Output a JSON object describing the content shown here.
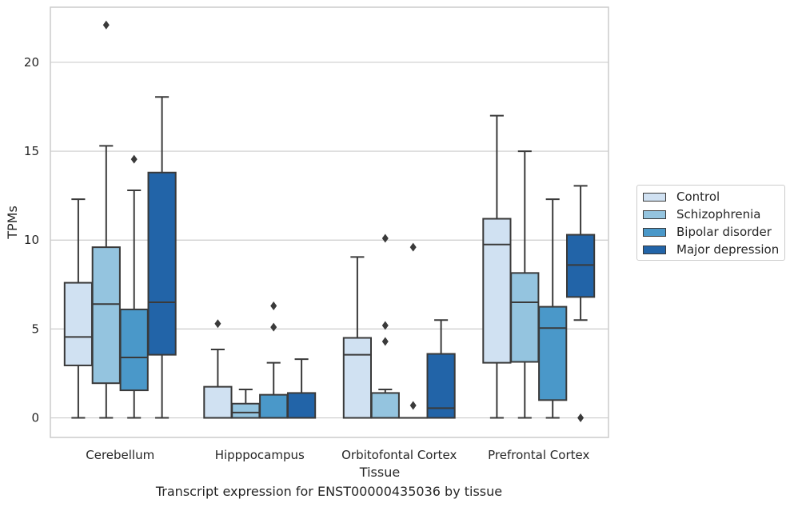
{
  "caption": "Transcript expression for ENST00000435036 by tissue",
  "chart_data": {
    "type": "box",
    "xlabel": "Tissue",
    "ylabel": "TPMs",
    "ylim": [
      -1.1,
      23.1
    ],
    "yticks": [
      0,
      5,
      10,
      15,
      20
    ],
    "grid": "horizontal",
    "legend_placement": "outside-right",
    "categories": [
      "Cerebellum",
      "Hipppocampus",
      "Orbitofontal Cortex",
      "Prefrontal Cortex"
    ],
    "series": [
      {
        "name": "Control",
        "color": "#d0e1f2",
        "boxes": [
          {
            "min": 0,
            "q1": 2.95,
            "median": 4.55,
            "q3": 7.6,
            "max": 12.3,
            "outliers": []
          },
          {
            "min": 0,
            "q1": 0,
            "median": 0,
            "q3": 1.75,
            "max": 3.85,
            "outliers": [
              5.3
            ]
          },
          {
            "min": 0,
            "q1": 0,
            "median": 3.55,
            "q3": 4.5,
            "max": 9.05,
            "outliers": []
          },
          {
            "min": 0,
            "q1": 3.1,
            "median": 9.75,
            "q3": 11.2,
            "max": 17.0,
            "outliers": []
          }
        ]
      },
      {
        "name": "Schizophrenia",
        "color": "#94c4df",
        "boxes": [
          {
            "min": 0,
            "q1": 1.95,
            "median": 6.4,
            "q3": 9.6,
            "max": 15.3,
            "outliers": [
              22.1
            ]
          },
          {
            "min": 0,
            "q1": 0,
            "median": 0.3,
            "q3": 0.8,
            "max": 1.6,
            "outliers": []
          },
          {
            "min": 0,
            "q1": 0,
            "median": 0,
            "q3": 1.4,
            "max": 1.6,
            "outliers": [
              10.1,
              5.2,
              4.3
            ]
          },
          {
            "min": 0,
            "q1": 3.15,
            "median": 6.5,
            "q3": 8.15,
            "max": 15.0,
            "outliers": []
          }
        ]
      },
      {
        "name": "Bipolar disorder",
        "color": "#4a98c9",
        "boxes": [
          {
            "min": 0,
            "q1": 1.55,
            "median": 3.4,
            "q3": 6.1,
            "max": 12.8,
            "outliers": [
              14.55
            ]
          },
          {
            "min": 0,
            "q1": 0,
            "median": 0,
            "q3": 1.3,
            "max": 3.1,
            "outliers": [
              6.3,
              5.1
            ]
          },
          {
            "min": 0,
            "q1": 0,
            "median": 0,
            "q3": 0,
            "max": 0,
            "outliers": [
              9.6,
              0.7
            ]
          },
          {
            "min": 0,
            "q1": 1.0,
            "median": 5.05,
            "q3": 6.25,
            "max": 12.3,
            "outliers": []
          }
        ]
      },
      {
        "name": "Major depression",
        "color": "#2264a8",
        "boxes": [
          {
            "min": 0,
            "q1": 3.55,
            "median": 6.5,
            "q3": 13.8,
            "max": 18.05,
            "outliers": []
          },
          {
            "min": 0,
            "q1": 0,
            "median": 0,
            "q3": 1.4,
            "max": 3.3,
            "outliers": []
          },
          {
            "min": 0,
            "q1": 0,
            "median": 0.55,
            "q3": 3.6,
            "max": 5.5,
            "outliers": []
          },
          {
            "min": 5.5,
            "q1": 6.8,
            "median": 8.6,
            "q3": 10.3,
            "max": 13.05,
            "outliers": [
              0
            ]
          }
        ]
      }
    ]
  }
}
